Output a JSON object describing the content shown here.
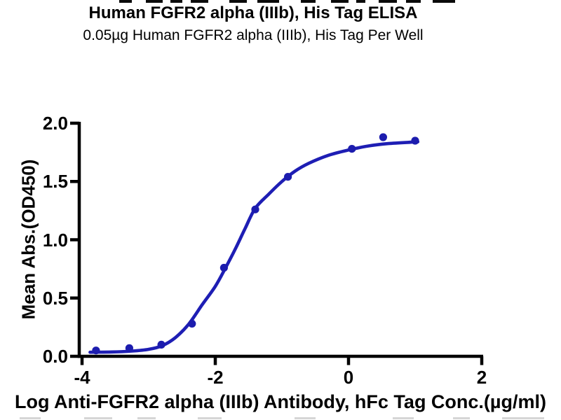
{
  "chart_data": {
    "type": "scatter",
    "title": "Human FGFR2 alpha (IIIb), His Tag ELISA",
    "subtitle": "0.05µg Human FGFR2 alpha (IIIb), His Tag Per Well",
    "xlabel": "Log Anti-FGFR2 alpha (IIIb) Antibody, hFc Tag Conc.(µg/ml)",
    "ylabel": "Mean Abs.(OD450)",
    "xlim": [
      -4,
      2
    ],
    "ylim": [
      0,
      2
    ],
    "grid": false,
    "legend": null,
    "x_ticks": [
      {
        "value": -4,
        "label": "-4"
      },
      {
        "value": -2,
        "label": "-2"
      },
      {
        "value": 0,
        "label": "0"
      },
      {
        "value": 2,
        "label": "2"
      }
    ],
    "y_ticks": [
      {
        "value": 0.0,
        "label": "0.0"
      },
      {
        "value": 0.5,
        "label": "0.5"
      },
      {
        "value": 1.0,
        "label": "1.0"
      },
      {
        "value": 1.5,
        "label": "1.5"
      },
      {
        "value": 2.0,
        "label": "2.0"
      }
    ],
    "series": [
      {
        "marker": "circle",
        "x": [
          -3.79,
          -3.29,
          -2.81,
          -2.35,
          -1.87,
          -1.4,
          -0.91,
          0.05,
          0.52,
          1.0
        ],
        "y": [
          0.05,
          0.07,
          0.1,
          0.28,
          0.76,
          1.26,
          1.54,
          1.78,
          1.88,
          1.85
        ]
      }
    ],
    "fit_curve": {
      "x": [
        -3.88,
        -3.55,
        -3.25,
        -3.0,
        -2.8,
        -2.6,
        -2.4,
        -2.2,
        -2.0,
        -1.85,
        -1.7,
        -1.55,
        -1.4,
        -1.2,
        -1.0,
        -0.8,
        -0.6,
        -0.3,
        0.0,
        0.3,
        0.6,
        1.04
      ],
      "y": [
        0.035,
        0.037,
        0.045,
        0.06,
        0.09,
        0.16,
        0.275,
        0.44,
        0.6,
        0.755,
        0.92,
        1.1,
        1.27,
        1.39,
        1.5,
        1.59,
        1.655,
        1.725,
        1.77,
        1.805,
        1.825,
        1.84
      ]
    },
    "colors": {
      "curve": "#1e1eb4",
      "marker": "#1c1cae",
      "axis": "#000000",
      "text": "#000000"
    }
  }
}
